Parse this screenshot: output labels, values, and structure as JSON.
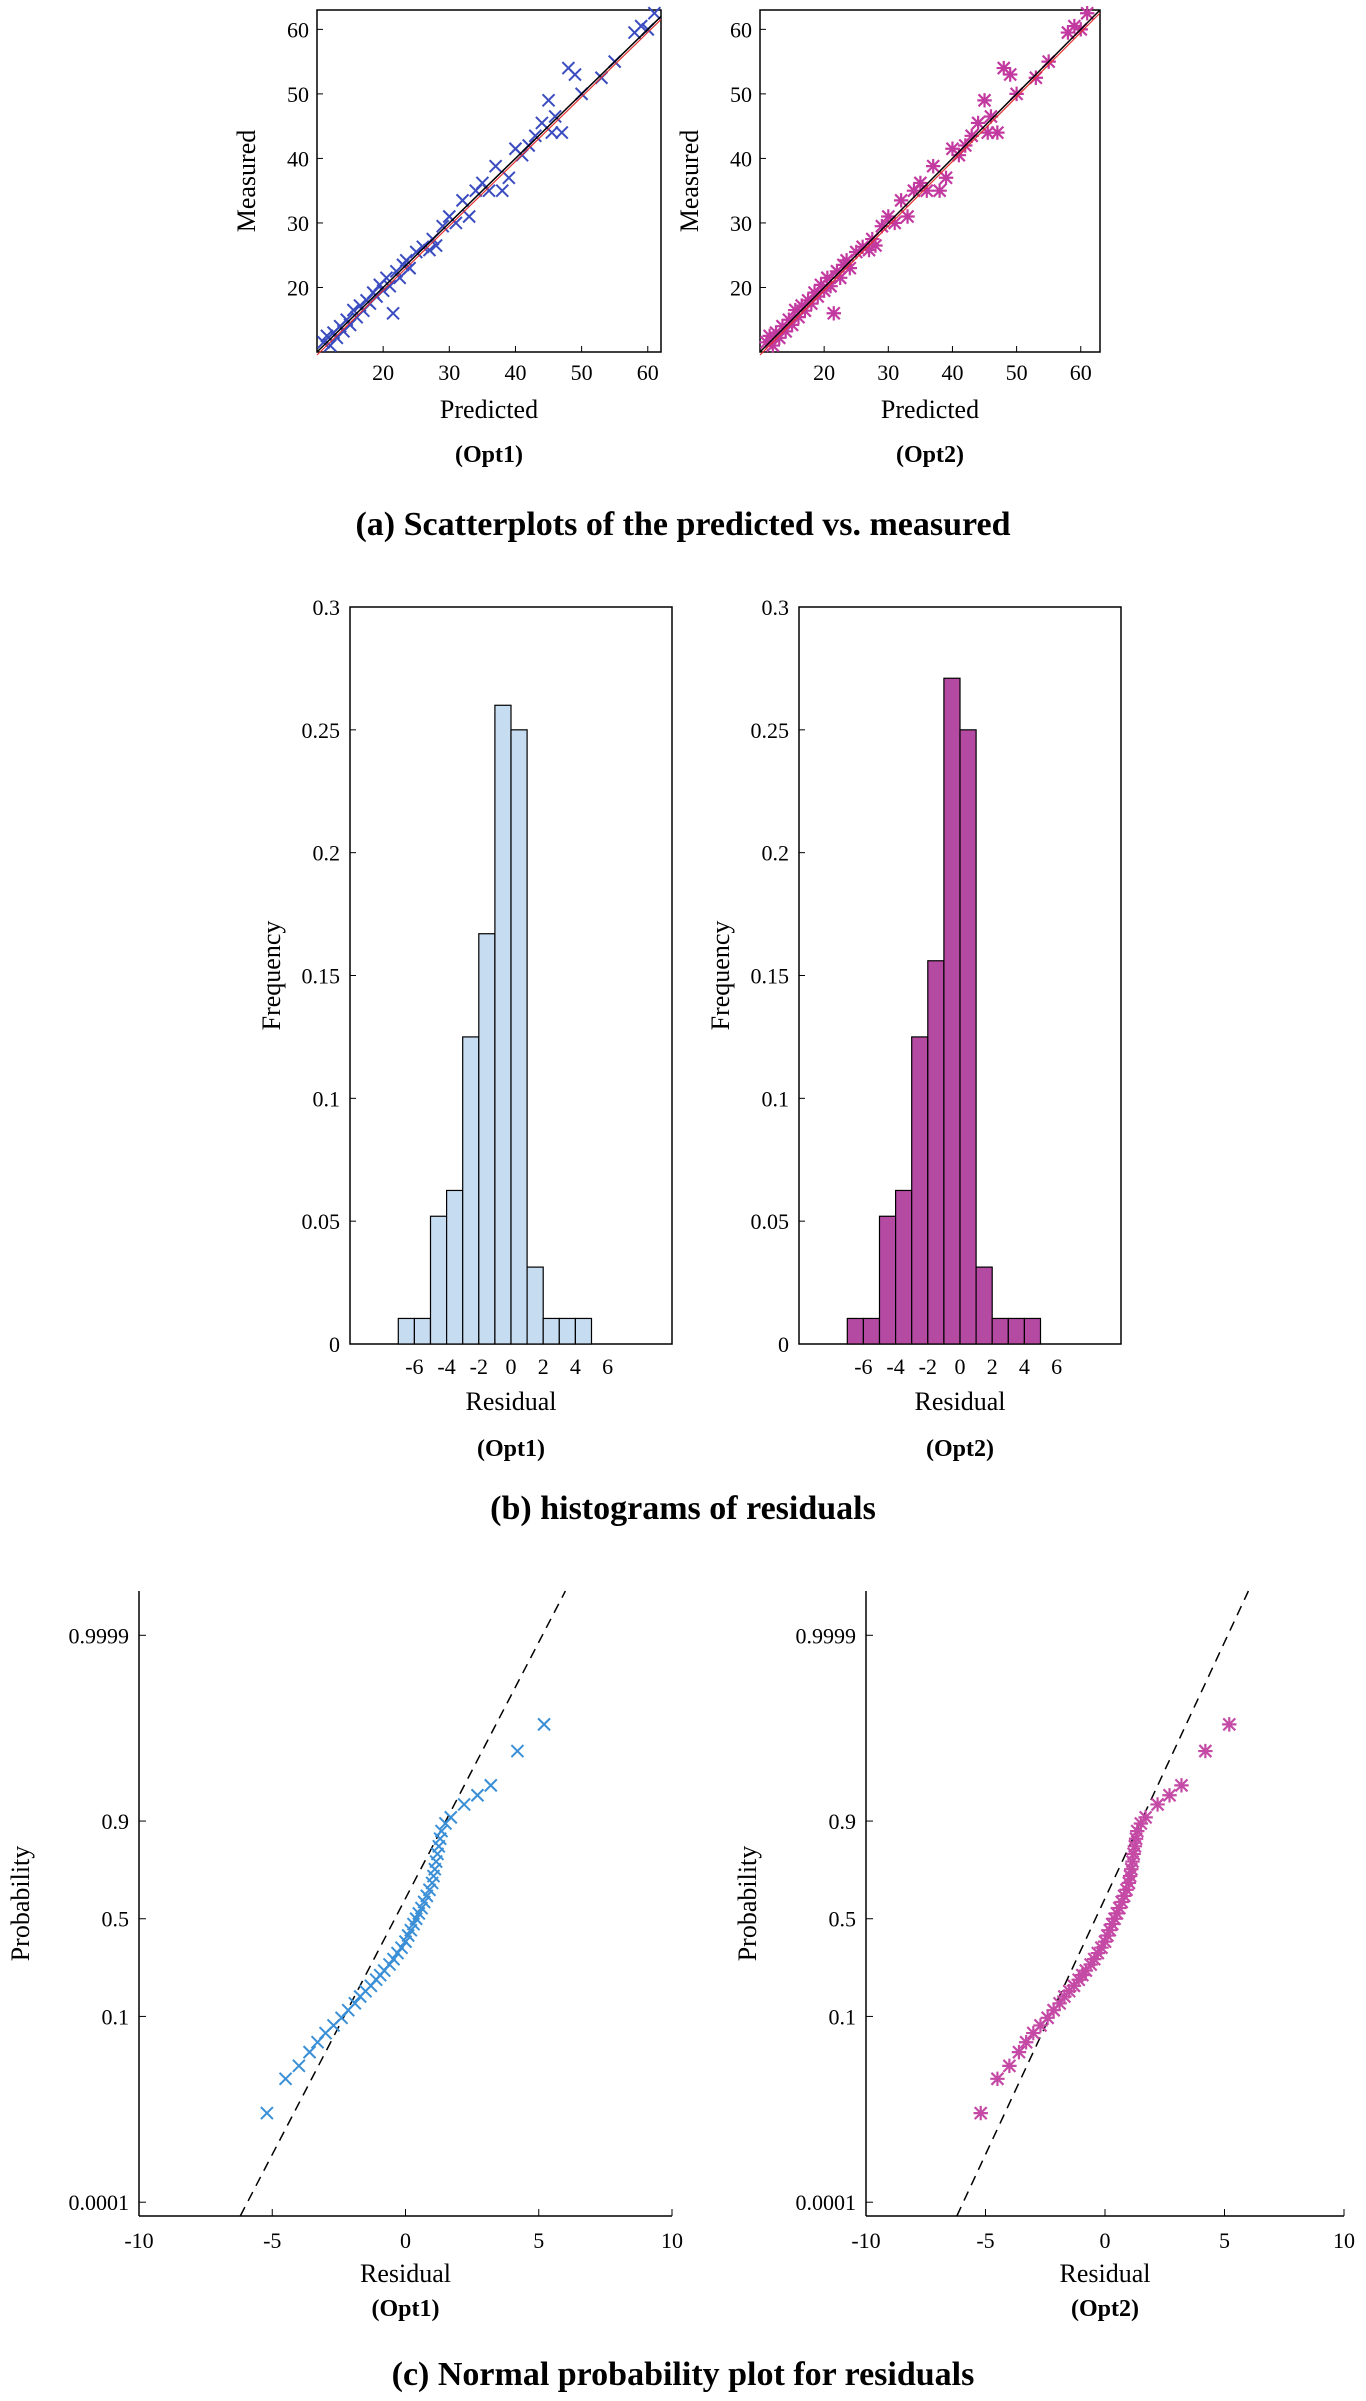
{
  "colors": {
    "opt1_marker": "#3a4cc0",
    "opt2_marker": "#c23aa0",
    "opt1_hist": "#c6dcf1",
    "opt2_hist": "#b54aa2",
    "opt1_npp": "#3a8fd6",
    "opt2_npp": "#c44aa6",
    "fit_red": "#e53030",
    "ref_line": "#000000"
  },
  "icons": {
    "opt1_marker": "x-marker",
    "opt2_marker": "asterisk-marker"
  },
  "captions": {
    "a": "(a) Scatterplots of the predicted vs. measured",
    "b": "(b) histograms of residuals",
    "c": "(c) Normal probability plot for residuals"
  },
  "chart_data": [
    {
      "id": "scatter_opt1",
      "type": "scatter",
      "panel": "a",
      "option": "(Opt1)",
      "xlabel": "Predicted",
      "ylabel": "Measured",
      "xlim": [
        10,
        62
      ],
      "ylim": [
        10,
        63
      ],
      "xticks": [
        20,
        30,
        40,
        50,
        60
      ],
      "yticks": [
        20,
        30,
        40,
        50,
        60
      ],
      "reference_line": [
        [
          10,
          10
        ],
        [
          62,
          62
        ]
      ],
      "points": [
        [
          11,
          11.5
        ],
        [
          11.5,
          12.5
        ],
        [
          12,
          11
        ],
        [
          12.5,
          13
        ],
        [
          13,
          12.2
        ],
        [
          13.5,
          14
        ],
        [
          14,
          13.2
        ],
        [
          14.5,
          15
        ],
        [
          15,
          14.2
        ],
        [
          15.5,
          16.5
        ],
        [
          16,
          15.4
        ],
        [
          16.5,
          17.2
        ],
        [
          17,
          16.4
        ],
        [
          17.5,
          18
        ],
        [
          18,
          17.5
        ],
        [
          18.5,
          19.2
        ],
        [
          19,
          18.6
        ],
        [
          19.5,
          20.4
        ],
        [
          20,
          19.5
        ],
        [
          20.5,
          21.5
        ],
        [
          21,
          20.2
        ],
        [
          21.5,
          16
        ],
        [
          22,
          22.5
        ],
        [
          22.5,
          21.5
        ],
        [
          23,
          23.5
        ],
        [
          23.5,
          24.2
        ],
        [
          24,
          23
        ],
        [
          25,
          25.5
        ],
        [
          26,
          26.3
        ],
        [
          27,
          25.8
        ],
        [
          27.5,
          27.5
        ],
        [
          28,
          26.5
        ],
        [
          29,
          29.5
        ],
        [
          30,
          31
        ],
        [
          31,
          30
        ],
        [
          32,
          33.5
        ],
        [
          33,
          31
        ],
        [
          34,
          35
        ],
        [
          35,
          36.2
        ],
        [
          36,
          35
        ],
        [
          37,
          38.8
        ],
        [
          38,
          35
        ],
        [
          39,
          37
        ],
        [
          40,
          41.5
        ],
        [
          41,
          40.5
        ],
        [
          42,
          42
        ],
        [
          43,
          43.5
        ],
        [
          44,
          45.5
        ],
        [
          45,
          49
        ],
        [
          45.5,
          44
        ],
        [
          46,
          46.5
        ],
        [
          47,
          44
        ],
        [
          48,
          54
        ],
        [
          49,
          53
        ],
        [
          50,
          50
        ],
        [
          53,
          52.5
        ],
        [
          55,
          55
        ],
        [
          58,
          59.5
        ],
        [
          59,
          60.5
        ],
        [
          60,
          60
        ],
        [
          61,
          62.5
        ]
      ]
    },
    {
      "id": "scatter_opt2",
      "type": "scatter",
      "panel": "a",
      "option": "(Opt2)",
      "xlabel": "Predicted",
      "ylabel": "Measured",
      "xlim": [
        10,
        63
      ],
      "ylim": [
        10,
        63
      ],
      "xticks": [
        20,
        30,
        40,
        50,
        60
      ],
      "yticks": [
        20,
        30,
        40,
        50,
        60
      ],
      "reference_line": [
        [
          10,
          10
        ],
        [
          63,
          63
        ]
      ],
      "points": [
        [
          11,
          11.5
        ],
        [
          11.5,
          12.5
        ],
        [
          12,
          11
        ],
        [
          12.5,
          13
        ],
        [
          13,
          12.2
        ],
        [
          13.5,
          14
        ],
        [
          14,
          13.2
        ],
        [
          14.5,
          15
        ],
        [
          15,
          14.2
        ],
        [
          15.5,
          16.5
        ],
        [
          16,
          15.4
        ],
        [
          16.5,
          17.2
        ],
        [
          17,
          16.4
        ],
        [
          17.5,
          18
        ],
        [
          18,
          17.5
        ],
        [
          18.5,
          19.2
        ],
        [
          19,
          18.6
        ],
        [
          19.5,
          20.4
        ],
        [
          20,
          19.5
        ],
        [
          20.5,
          21.5
        ],
        [
          21,
          20.2
        ],
        [
          21.5,
          16
        ],
        [
          22,
          22.5
        ],
        [
          22.5,
          21.5
        ],
        [
          23,
          23.5
        ],
        [
          23.5,
          24.2
        ],
        [
          24,
          23
        ],
        [
          25,
          25.5
        ],
        [
          26,
          26.3
        ],
        [
          27,
          25.8
        ],
        [
          27.5,
          27.5
        ],
        [
          28,
          26.5
        ],
        [
          29,
          29.5
        ],
        [
          30,
          31
        ],
        [
          31,
          30
        ],
        [
          32,
          33.5
        ],
        [
          33,
          31
        ],
        [
          34,
          35
        ],
        [
          35,
          36.2
        ],
        [
          36,
          35
        ],
        [
          37,
          38.8
        ],
        [
          38,
          35
        ],
        [
          39,
          37
        ],
        [
          40,
          41.5
        ],
        [
          41,
          40.5
        ],
        [
          42,
          42
        ],
        [
          43,
          43.5
        ],
        [
          44,
          45.5
        ],
        [
          45,
          49
        ],
        [
          45.5,
          44
        ],
        [
          46,
          46.5
        ],
        [
          47,
          44
        ],
        [
          48,
          54
        ],
        [
          49,
          53
        ],
        [
          50,
          50
        ],
        [
          53,
          52.5
        ],
        [
          55,
          55
        ],
        [
          58,
          59.5
        ],
        [
          59,
          60.5
        ],
        [
          60,
          60
        ],
        [
          61,
          62.5
        ]
      ]
    },
    {
      "id": "hist_opt1",
      "type": "bar",
      "panel": "b",
      "option": "(Opt1)",
      "xlabel": "Residual",
      "ylabel": "Frequency",
      "xlim": [
        -10,
        10
      ],
      "ylim": [
        0,
        0.3
      ],
      "xticks": [
        -6,
        -4,
        -2,
        0,
        2,
        4,
        6
      ],
      "yticks": [
        0,
        0.05,
        0.1,
        0.15,
        0.2,
        0.25,
        0.3
      ],
      "ytick_labels": [
        "0",
        "0.05",
        "0.1",
        "0.15",
        "0.2",
        "0.25",
        "0.3"
      ],
      "bin_edges": [
        -7,
        -6,
        -5,
        -4,
        -3,
        -2,
        -1,
        0,
        1,
        2,
        3,
        4,
        5,
        6
      ],
      "values": [
        0.0104,
        0.0104,
        0.052,
        0.0625,
        0.125,
        0.167,
        0.26,
        0.25,
        0.0313,
        0.0104,
        0.0104,
        0.0104,
        0
      ]
    },
    {
      "id": "hist_opt2",
      "type": "bar",
      "panel": "b",
      "option": "(Opt2)",
      "xlabel": "Residual",
      "ylabel": "Frequency",
      "xlim": [
        -10,
        10
      ],
      "ylim": [
        0,
        0.3
      ],
      "xticks": [
        -6,
        -4,
        -2,
        0,
        2,
        4,
        6
      ],
      "yticks": [
        0,
        0.05,
        0.1,
        0.15,
        0.2,
        0.25,
        0.3
      ],
      "ytick_labels": [
        "0",
        "0.05",
        "0.1",
        "0.15",
        "0.2",
        "0.25",
        "0.3"
      ],
      "bin_edges": [
        -7,
        -6,
        -5,
        -4,
        -3,
        -2,
        -1,
        0,
        1,
        2,
        3,
        4,
        5,
        6
      ],
      "values": [
        0.0104,
        0.0104,
        0.052,
        0.0625,
        0.125,
        0.156,
        0.271,
        0.25,
        0.0313,
        0.0104,
        0.0104,
        0.0104,
        0
      ]
    },
    {
      "id": "npp_opt1",
      "type": "scatter",
      "panel": "c",
      "option": "(Opt1)",
      "xlabel": "Residual",
      "ylabel": "Probability",
      "xlim": [
        -10,
        10
      ],
      "zlim": [
        -3.9,
        4.3
      ],
      "xticks": [
        -10,
        -5,
        0,
        5,
        10
      ],
      "ytick_labels": [
        "0.0001",
        "0.1",
        "0.5",
        "0.9",
        "0.9999"
      ],
      "ytick_z": [
        -3.719,
        -1.2816,
        0,
        1.2816,
        3.719
      ],
      "reference_line_z": [
        [
          -6.2,
          -3.9
        ],
        [
          6.0,
          4.3
        ]
      ],
      "points_z": [
        [
          -5.2,
          -2.55
        ],
        [
          -4.5,
          -2.1
        ],
        [
          -4.0,
          -1.93
        ],
        [
          -3.6,
          -1.75
        ],
        [
          -3.3,
          -1.62
        ],
        [
          -3.0,
          -1.5
        ],
        [
          -2.7,
          -1.4
        ],
        [
          -2.4,
          -1.3
        ],
        [
          -2.15,
          -1.2
        ],
        [
          -1.9,
          -1.11
        ],
        [
          -1.7,
          -1.02
        ],
        [
          -1.5,
          -0.95
        ],
        [
          -1.3,
          -0.88
        ],
        [
          -1.1,
          -0.8
        ],
        [
          -0.95,
          -0.74
        ],
        [
          -0.8,
          -0.68
        ],
        [
          -0.6,
          -0.6
        ],
        [
          -0.45,
          -0.53
        ],
        [
          -0.3,
          -0.45
        ],
        [
          -0.15,
          -0.38
        ],
        [
          0,
          -0.3
        ],
        [
          0.1,
          -0.22
        ],
        [
          0.2,
          -0.15
        ],
        [
          0.3,
          -0.07
        ],
        [
          0.4,
          0
        ],
        [
          0.5,
          0.07
        ],
        [
          0.6,
          0.14
        ],
        [
          0.7,
          0.22
        ],
        [
          0.8,
          0.3
        ],
        [
          0.9,
          0.38
        ],
        [
          1.0,
          0.47
        ],
        [
          1.05,
          0.56
        ],
        [
          1.1,
          0.65
        ],
        [
          1.15,
          0.75
        ],
        [
          1.2,
          0.85
        ],
        [
          1.25,
          0.95
        ],
        [
          1.3,
          1.05
        ],
        [
          1.35,
          1.15
        ],
        [
          1.5,
          1.25
        ],
        [
          1.7,
          1.33
        ],
        [
          2.2,
          1.5
        ],
        [
          2.7,
          1.62
        ],
        [
          3.2,
          1.75
        ],
        [
          4.2,
          2.2
        ],
        [
          5.2,
          2.55
        ]
      ]
    },
    {
      "id": "npp_opt2",
      "type": "scatter",
      "panel": "c",
      "option": "(Opt2)",
      "xlabel": "Residual",
      "ylabel": "Probability",
      "xlim": [
        -10,
        10
      ],
      "zlim": [
        -3.9,
        4.3
      ],
      "xticks": [
        -10,
        -5,
        0,
        5,
        10
      ],
      "ytick_labels": [
        "0.0001",
        "0.1",
        "0.5",
        "0.9",
        "0.9999"
      ],
      "ytick_z": [
        -3.719,
        -1.2816,
        0,
        1.2816,
        3.719
      ],
      "reference_line_z": [
        [
          -6.2,
          -3.9
        ],
        [
          6.0,
          4.3
        ]
      ],
      "points_z": [
        [
          -5.2,
          -2.55
        ],
        [
          -4.5,
          -2.1
        ],
        [
          -4.0,
          -1.93
        ],
        [
          -3.6,
          -1.75
        ],
        [
          -3.3,
          -1.62
        ],
        [
          -3.0,
          -1.5
        ],
        [
          -2.7,
          -1.4
        ],
        [
          -2.4,
          -1.3
        ],
        [
          -2.15,
          -1.2
        ],
        [
          -1.9,
          -1.11
        ],
        [
          -1.7,
          -1.02
        ],
        [
          -1.5,
          -0.95
        ],
        [
          -1.3,
          -0.88
        ],
        [
          -1.1,
          -0.8
        ],
        [
          -0.95,
          -0.74
        ],
        [
          -0.8,
          -0.68
        ],
        [
          -0.6,
          -0.6
        ],
        [
          -0.45,
          -0.53
        ],
        [
          -0.3,
          -0.45
        ],
        [
          -0.15,
          -0.38
        ],
        [
          0,
          -0.3
        ],
        [
          0.1,
          -0.22
        ],
        [
          0.2,
          -0.15
        ],
        [
          0.3,
          -0.07
        ],
        [
          0.4,
          0
        ],
        [
          0.5,
          0.07
        ],
        [
          0.6,
          0.14
        ],
        [
          0.7,
          0.22
        ],
        [
          0.8,
          0.3
        ],
        [
          0.9,
          0.38
        ],
        [
          1.0,
          0.47
        ],
        [
          1.05,
          0.56
        ],
        [
          1.1,
          0.65
        ],
        [
          1.15,
          0.75
        ],
        [
          1.2,
          0.85
        ],
        [
          1.25,
          0.95
        ],
        [
          1.3,
          1.05
        ],
        [
          1.35,
          1.15
        ],
        [
          1.5,
          1.25
        ],
        [
          1.7,
          1.33
        ],
        [
          2.2,
          1.5
        ],
        [
          2.7,
          1.62
        ],
        [
          3.2,
          1.75
        ],
        [
          4.2,
          2.2
        ],
        [
          5.2,
          2.55
        ]
      ]
    }
  ]
}
